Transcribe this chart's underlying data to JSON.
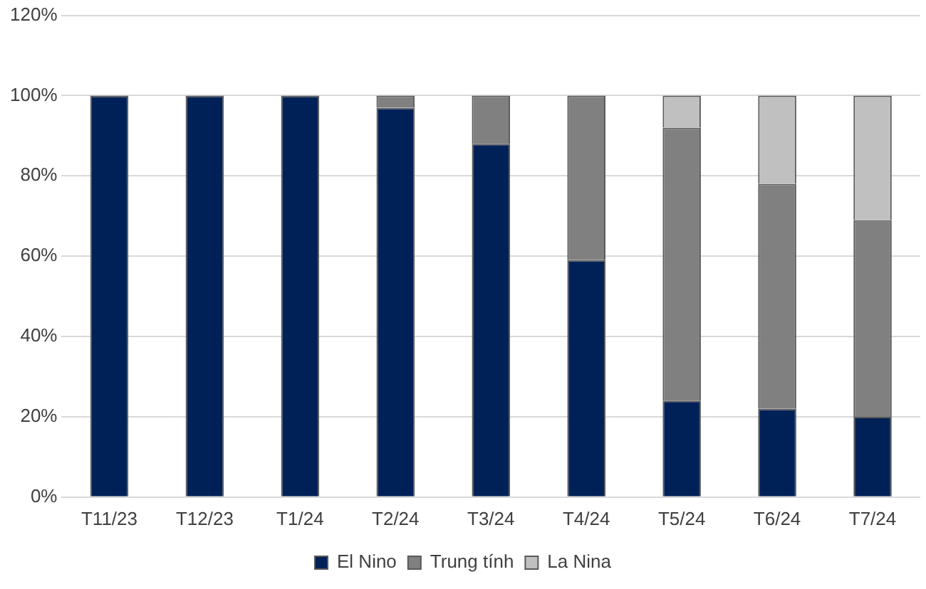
{
  "chart_data": {
    "type": "bar",
    "stacked": true,
    "categories": [
      "T11/23",
      "T12/23",
      "T1/24",
      "T2/24",
      "T3/24",
      "T4/24",
      "T5/24",
      "T6/24",
      "T7/24"
    ],
    "series": [
      {
        "name": "El Nino",
        "color": "#002157",
        "values": [
          100,
          100,
          100,
          97,
          88,
          59,
          24,
          22,
          20
        ]
      },
      {
        "name": "Trung tính",
        "color": "#808080",
        "values": [
          0,
          0,
          0,
          3,
          12,
          41,
          68,
          56,
          49
        ]
      },
      {
        "name": "La Nina",
        "color": "#c0c0c0",
        "values": [
          0,
          0,
          0,
          0,
          0,
          0,
          8,
          22,
          31
        ]
      }
    ],
    "ylim": [
      0,
      120
    ],
    "yticks": [
      {
        "value": 0,
        "label": "0%"
      },
      {
        "value": 20,
        "label": "20%"
      },
      {
        "value": 40,
        "label": "40%"
      },
      {
        "value": 60,
        "label": "60%"
      },
      {
        "value": 80,
        "label": "80%"
      },
      {
        "value": 100,
        "label": "100%"
      },
      {
        "value": 120,
        "label": "120%"
      }
    ],
    "grid": "y",
    "legend": "bottom"
  }
}
